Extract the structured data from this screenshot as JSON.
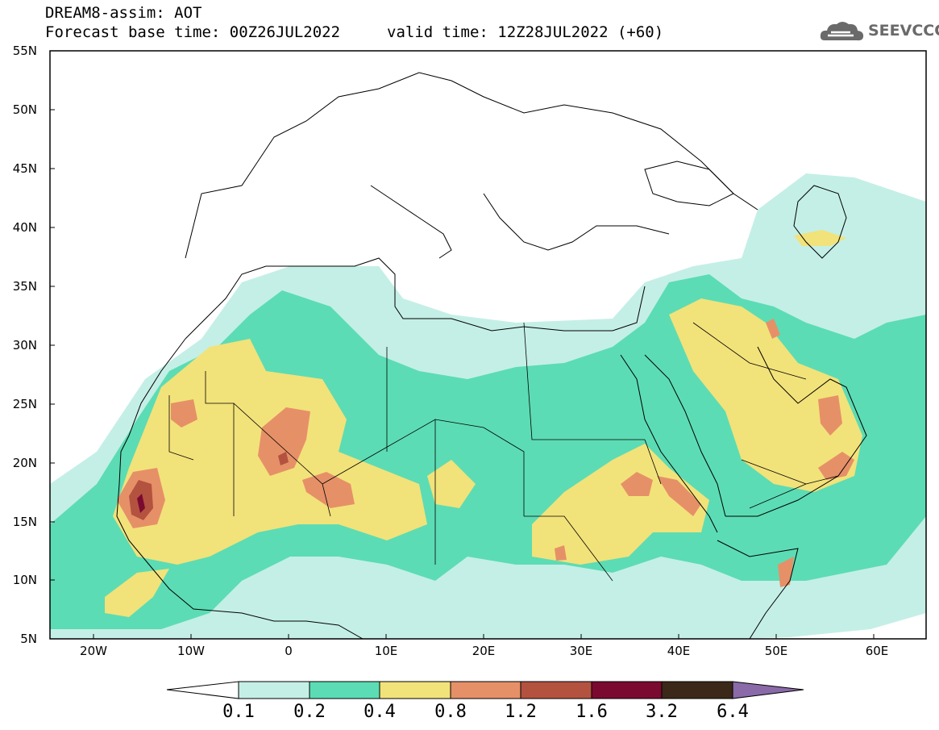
{
  "header": {
    "title_line1": "DREAM8-assim: AOT",
    "title_line2": "Forecast base time: 00Z26JUL2022",
    "valid_time": "valid time: 12Z28JUL2022 (+60)",
    "logo_text": "SEEVCCC"
  },
  "map": {
    "projection": "lat-lon",
    "lon_range": [
      -25,
      65
    ],
    "lat_range": [
      5,
      55
    ],
    "lon_ticks": [
      "20W",
      "10W",
      "0",
      "10E",
      "20E",
      "30E",
      "40E",
      "50E",
      "60E"
    ],
    "lat_ticks": [
      "55N",
      "50N",
      "45N",
      "40N",
      "35N",
      "30N",
      "25N",
      "20N",
      "15N",
      "10N",
      "5N"
    ],
    "variable": "AOT"
  },
  "colorbar": {
    "labels": [
      "0.1",
      "0.2",
      "0.4",
      "0.8",
      "1.2",
      "1.6",
      "3.2",
      "6.4"
    ],
    "colors": [
      "#ffffff",
      "#c4efe6",
      "#5cdcb4",
      "#f2e27a",
      "#e69068",
      "#b45240",
      "#7a0a30",
      "#3c2818",
      "#8a6aa8"
    ]
  }
}
